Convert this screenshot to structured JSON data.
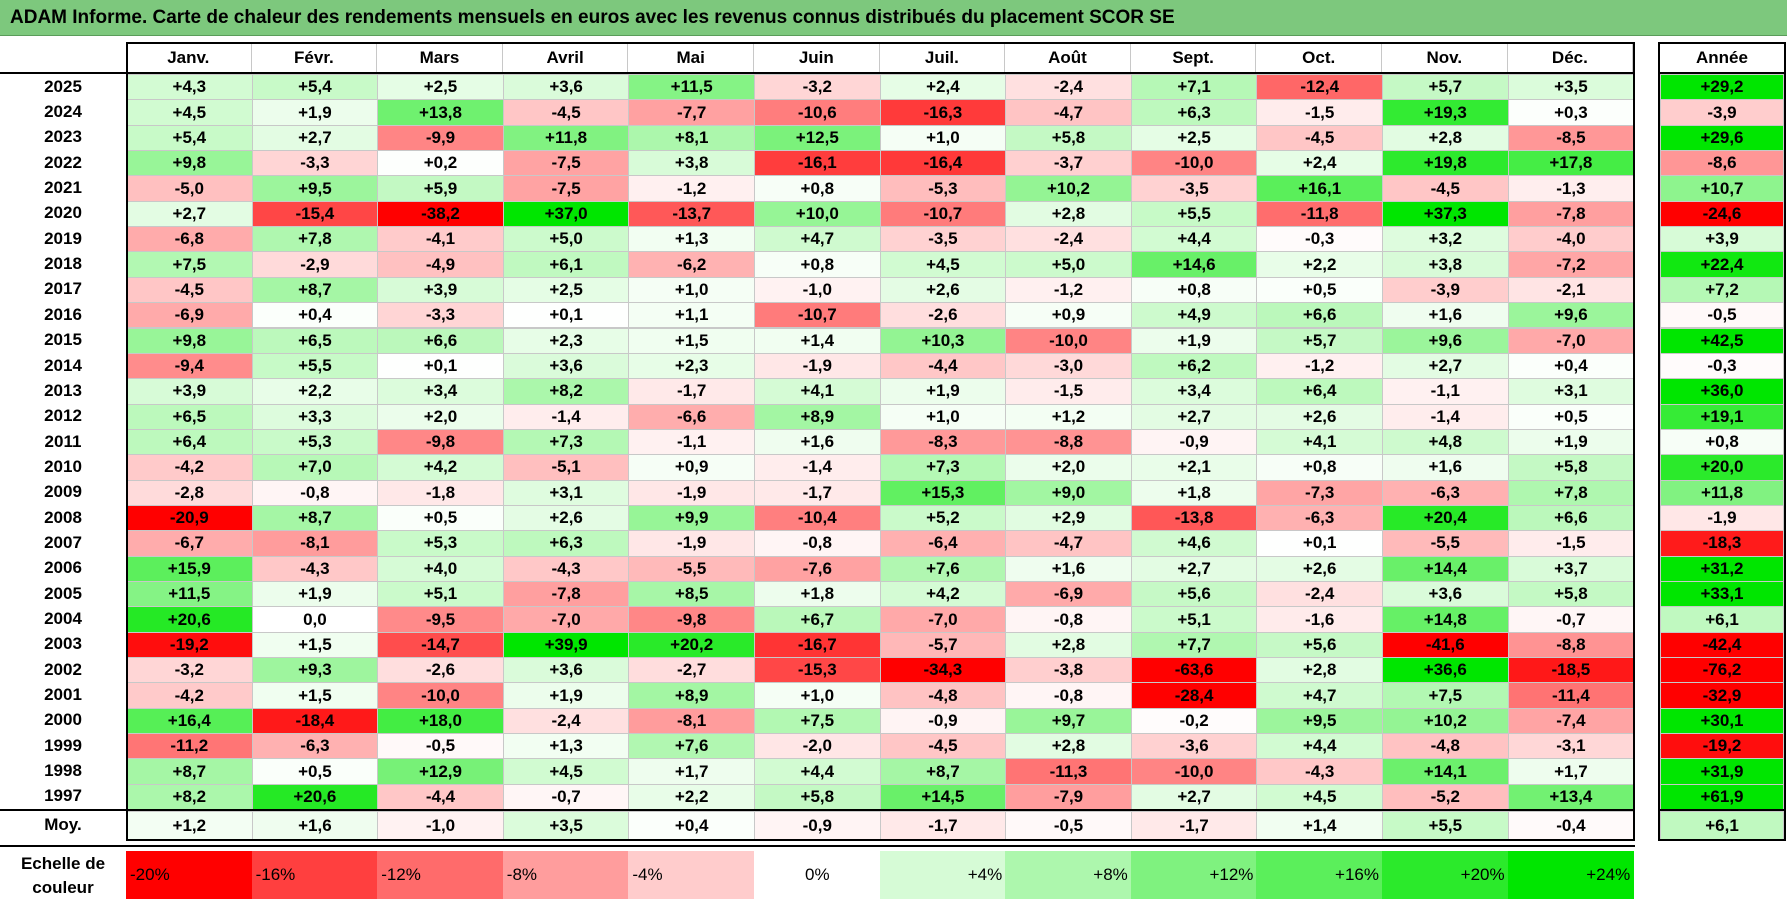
{
  "title": "ADAM Informe. Carte de chaleur des rendements mensuels en euros avec les revenus connus distribués du placement SCOR SE",
  "chart_data": {
    "type": "heatmap",
    "months": [
      "Janv.",
      "Févr.",
      "Mars",
      "Avril",
      "Mai",
      "Juin",
      "Juil.",
      "Août",
      "Sept.",
      "Oct.",
      "Nov.",
      "Déc."
    ],
    "year_header": "Année",
    "rows": [
      {
        "year": "2025",
        "values": [
          "+4,3",
          "+5,4",
          "+2,5",
          "+3,6",
          "+11,5",
          "-3,2",
          "+2,4",
          "-2,4",
          "+7,1",
          "-12,4",
          "+5,7",
          "+3,5"
        ],
        "annual": "+29,2"
      },
      {
        "year": "2024",
        "values": [
          "+4,5",
          "+1,9",
          "+13,8",
          "-4,5",
          "-7,7",
          "-10,6",
          "-16,3",
          "-4,7",
          "+6,3",
          "-1,5",
          "+19,3",
          "+0,3"
        ],
        "annual": "-3,9"
      },
      {
        "year": "2023",
        "values": [
          "+5,4",
          "+2,7",
          "-9,9",
          "+11,8",
          "+8,1",
          "+12,5",
          "+1,0",
          "+5,8",
          "+2,5",
          "-4,5",
          "+2,8",
          "-8,5"
        ],
        "annual": "+29,6"
      },
      {
        "year": "2022",
        "values": [
          "+9,8",
          "-3,3",
          "+0,2",
          "-7,5",
          "+3,8",
          "-16,1",
          "-16,4",
          "-3,7",
          "-10,0",
          "+2,4",
          "+19,8",
          "+17,8"
        ],
        "annual": "-8,6"
      },
      {
        "year": "2021",
        "values": [
          "-5,0",
          "+9,5",
          "+5,9",
          "-7,5",
          "-1,2",
          "+0,8",
          "-5,3",
          "+10,2",
          "-3,5",
          "+16,1",
          "-4,5",
          "-1,3"
        ],
        "annual": "+10,7"
      },
      {
        "year": "2020",
        "values": [
          "+2,7",
          "-15,4",
          "-38,2",
          "+37,0",
          "-13,7",
          "+10,0",
          "-10,7",
          "+2,8",
          "+5,5",
          "-11,8",
          "+37,3",
          "-7,8"
        ],
        "annual": "-24,6"
      },
      {
        "year": "2019",
        "values": [
          "-6,8",
          "+7,8",
          "-4,1",
          "+5,0",
          "+1,3",
          "+4,7",
          "-3,5",
          "-2,4",
          "+4,4",
          "-0,3",
          "+3,2",
          "-4,0"
        ],
        "annual": "+3,9"
      },
      {
        "year": "2018",
        "values": [
          "+7,5",
          "-2,9",
          "-4,9",
          "+6,1",
          "-6,2",
          "+0,8",
          "+4,5",
          "+5,0",
          "+14,6",
          "+2,2",
          "+3,8",
          "-7,2"
        ],
        "annual": "+22,4"
      },
      {
        "year": "2017",
        "values": [
          "-4,5",
          "+8,7",
          "+3,9",
          "+2,5",
          "+1,0",
          "-1,0",
          "+2,6",
          "-1,2",
          "+0,8",
          "+0,5",
          "-3,9",
          "-2,1"
        ],
        "annual": "+7,2"
      },
      {
        "year": "2016",
        "values": [
          "-6,9",
          "+0,4",
          "-3,3",
          "+0,1",
          "+1,1",
          "-10,7",
          "-2,6",
          "+0,9",
          "+4,9",
          "+6,6",
          "+1,6",
          "+9,6"
        ],
        "annual": "-0,5"
      },
      {
        "year": "2015",
        "values": [
          "+9,8",
          "+6,5",
          "+6,6",
          "+2,3",
          "+1,5",
          "+1,4",
          "+10,3",
          "-10,0",
          "+1,9",
          "+5,7",
          "+9,6",
          "-7,0"
        ],
        "annual": "+42,5"
      },
      {
        "year": "2014",
        "values": [
          "-9,4",
          "+5,5",
          "+0,1",
          "+3,6",
          "+2,3",
          "-1,9",
          "-4,4",
          "-3,0",
          "+6,2",
          "-1,2",
          "+2,7",
          "+0,4"
        ],
        "annual": "-0,3"
      },
      {
        "year": "2013",
        "values": [
          "+3,9",
          "+2,2",
          "+3,4",
          "+8,2",
          "-1,7",
          "+4,1",
          "+1,9",
          "-1,5",
          "+3,4",
          "+6,4",
          "-1,1",
          "+3,1"
        ],
        "annual": "+36,0"
      },
      {
        "year": "2012",
        "values": [
          "+6,5",
          "+3,3",
          "+2,0",
          "-1,4",
          "-6,6",
          "+8,9",
          "+1,0",
          "+1,2",
          "+2,7",
          "+2,6",
          "-1,4",
          "+0,5"
        ],
        "annual": "+19,1"
      },
      {
        "year": "2011",
        "values": [
          "+6,4",
          "+5,3",
          "-9,8",
          "+7,3",
          "-1,1",
          "+1,6",
          "-8,3",
          "-8,8",
          "-0,9",
          "+4,1",
          "+4,8",
          "+1,9"
        ],
        "annual": "+0,8"
      },
      {
        "year": "2010",
        "values": [
          "-4,2",
          "+7,0",
          "+4,2",
          "-5,1",
          "+0,9",
          "-1,4",
          "+7,3",
          "+2,0",
          "+2,1",
          "+0,8",
          "+1,6",
          "+5,8"
        ],
        "annual": "+20,0"
      },
      {
        "year": "2009",
        "values": [
          "-2,8",
          "-0,8",
          "-1,8",
          "+3,1",
          "-1,9",
          "-1,7",
          "+15,3",
          "+9,0",
          "+1,8",
          "-7,3",
          "-6,3",
          "+7,8"
        ],
        "annual": "+11,8"
      },
      {
        "year": "2008",
        "values": [
          "-20,9",
          "+8,7",
          "+0,5",
          "+2,6",
          "+9,9",
          "-10,4",
          "+5,2",
          "+2,9",
          "-13,8",
          "-6,3",
          "+20,4",
          "+6,6"
        ],
        "annual": "-1,9"
      },
      {
        "year": "2007",
        "values": [
          "-6,7",
          "-8,1",
          "+5,3",
          "+6,3",
          "-1,9",
          "-0,8",
          "-6,4",
          "-4,7",
          "+4,6",
          "+0,1",
          "-5,5",
          "-1,5"
        ],
        "annual": "-18,3"
      },
      {
        "year": "2006",
        "values": [
          "+15,9",
          "-4,3",
          "+4,0",
          "-4,3",
          "-5,5",
          "-7,6",
          "+7,6",
          "+1,6",
          "+2,7",
          "+2,6",
          "+14,4",
          "+3,7"
        ],
        "annual": "+31,2"
      },
      {
        "year": "2005",
        "values": [
          "+11,5",
          "+1,9",
          "+5,1",
          "-7,8",
          "+8,5",
          "+1,8",
          "+4,2",
          "-6,9",
          "+5,6",
          "-2,4",
          "+3,6",
          "+5,8"
        ],
        "annual": "+33,1"
      },
      {
        "year": "2004",
        "values": [
          "+20,6",
          "0,0",
          "-9,5",
          "-7,0",
          "-9,8",
          "+6,7",
          "-7,0",
          "-0,8",
          "+5,1",
          "-1,6",
          "+14,8",
          "-0,7"
        ],
        "annual": "+6,1"
      },
      {
        "year": "2003",
        "values": [
          "-19,2",
          "+1,5",
          "-14,7",
          "+39,9",
          "+20,2",
          "-16,7",
          "-5,7",
          "+2,8",
          "+7,7",
          "+5,6",
          "-41,6",
          "-8,8"
        ],
        "annual": "-42,4"
      },
      {
        "year": "2002",
        "values": [
          "-3,2",
          "+9,3",
          "-2,6",
          "+3,6",
          "-2,7",
          "-15,3",
          "-34,3",
          "-3,8",
          "-63,6",
          "+2,8",
          "+36,6",
          "-18,5"
        ],
        "annual": "-76,2"
      },
      {
        "year": "2001",
        "values": [
          "-4,2",
          "+1,5",
          "-10,0",
          "+1,9",
          "+8,9",
          "+1,0",
          "-4,8",
          "-0,8",
          "-28,4",
          "+4,7",
          "+7,5",
          "-11,4"
        ],
        "annual": "-32,9"
      },
      {
        "year": "2000",
        "values": [
          "+16,4",
          "-18,4",
          "+18,0",
          "-2,4",
          "-8,1",
          "+7,5",
          "-0,9",
          "+9,7",
          "-0,2",
          "+9,5",
          "+10,2",
          "-7,4"
        ],
        "annual": "+30,1"
      },
      {
        "year": "1999",
        "values": [
          "-11,2",
          "-6,3",
          "-0,5",
          "+1,3",
          "+7,6",
          "-2,0",
          "-4,5",
          "+2,8",
          "-3,6",
          "+4,4",
          "-4,8",
          "-3,1"
        ],
        "annual": "-19,2"
      },
      {
        "year": "1998",
        "values": [
          "+8,7",
          "+0,5",
          "+12,9",
          "+4,5",
          "+1,7",
          "+4,4",
          "+8,7",
          "-11,3",
          "-10,0",
          "-4,3",
          "+14,1",
          "+1,7"
        ],
        "annual": "+31,9"
      },
      {
        "year": "1997",
        "values": [
          "+8,2",
          "+20,6",
          "-4,4",
          "-0,7",
          "+2,2",
          "+5,8",
          "+14,5",
          "-7,9",
          "+2,7",
          "+4,5",
          "-5,2",
          "+13,4"
        ],
        "annual": "+61,9"
      }
    ],
    "average_row": {
      "label": "Moy.",
      "values": [
        "+1,2",
        "+1,6",
        "-1,0",
        "+3,5",
        "+0,4",
        "-0,9",
        "-1,7",
        "-0,5",
        "-1,7",
        "+1,4",
        "+5,5",
        "-0,4"
      ],
      "annual": "+6,1"
    },
    "color_scale": {
      "label_line1": "Echelle de",
      "label_line2": "couleur",
      "stops": [
        {
          "label": "-20%",
          "value": -20,
          "color": "#ff0000"
        },
        {
          "label": "-16%",
          "value": -16,
          "color": "#ff3f3f"
        },
        {
          "label": "-12%",
          "value": -12,
          "color": "#ff6b6b"
        },
        {
          "label": "-8%",
          "value": -8,
          "color": "#ff9d9d"
        },
        {
          "label": "-4%",
          "value": -4,
          "color": "#ffcccc"
        },
        {
          "label": "0%",
          "value": 0,
          "color": "#ffffff"
        },
        {
          "label": "+4%",
          "value": 4,
          "color": "#d6fbd6"
        },
        {
          "label": "+8%",
          "value": 8,
          "color": "#adf7ad"
        },
        {
          "label": "+12%",
          "value": 12,
          "color": "#7ff27f"
        },
        {
          "label": "+16%",
          "value": 16,
          "color": "#5bef5b"
        },
        {
          "label": "+20%",
          "value": 20,
          "color": "#2bea2b"
        },
        {
          "label": "+24%",
          "value": 24,
          "color": "#00e600"
        }
      ]
    },
    "colors": {
      "title_bar": "#7dc87d",
      "positive": "#00e600",
      "negative": "#ff0000",
      "neutral": "#ffffff"
    }
  }
}
